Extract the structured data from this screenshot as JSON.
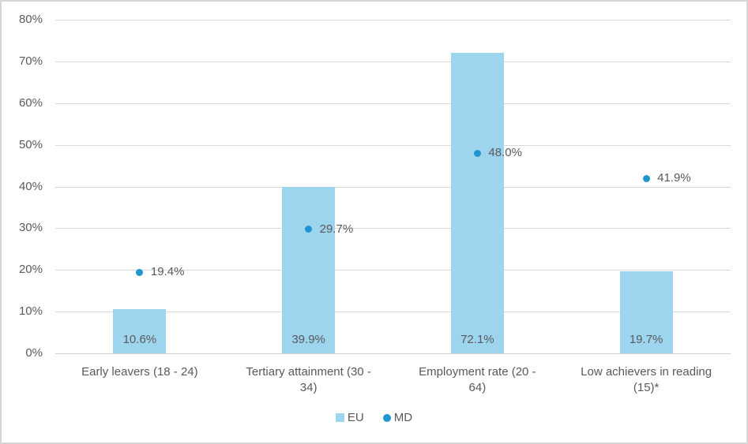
{
  "chart_data": {
    "type": "bar",
    "subtype": "bar-with-scatter-overlay",
    "title": "",
    "xlabel": "",
    "ylabel": "",
    "categories": [
      "Early leavers (18 - 24)",
      "Tertiary attainment (30 -\n34)",
      "Employment rate (20 -\n64)",
      "Low achievers in reading\n(15)*"
    ],
    "series": [
      {
        "name": "EU",
        "marker": "bar",
        "color": "#9ed5ee",
        "values": [
          10.6,
          39.9,
          72.1,
          19.7
        ],
        "labels": [
          "10.6%",
          "39.9%",
          "72.1%",
          "19.7%"
        ]
      },
      {
        "name": "MD",
        "marker": "point",
        "color": "#2096d0",
        "values": [
          19.4,
          29.7,
          48.0,
          41.9
        ],
        "labels": [
          "19.4%",
          "29.7%",
          "48.0%",
          "41.9%"
        ]
      }
    ],
    "y_axis": {
      "min": 0,
      "max": 80,
      "step": 10,
      "tick_labels": [
        "0%",
        "10%",
        "20%",
        "30%",
        "40%",
        "50%",
        "60%",
        "70%",
        "80%"
      ]
    },
    "grid": "horizontal",
    "legend_position": "bottom-center",
    "colors": {
      "text": "#595959",
      "gridline": "#d9d9d9",
      "border": "#d7d7d7",
      "background": "#ffffff"
    }
  }
}
